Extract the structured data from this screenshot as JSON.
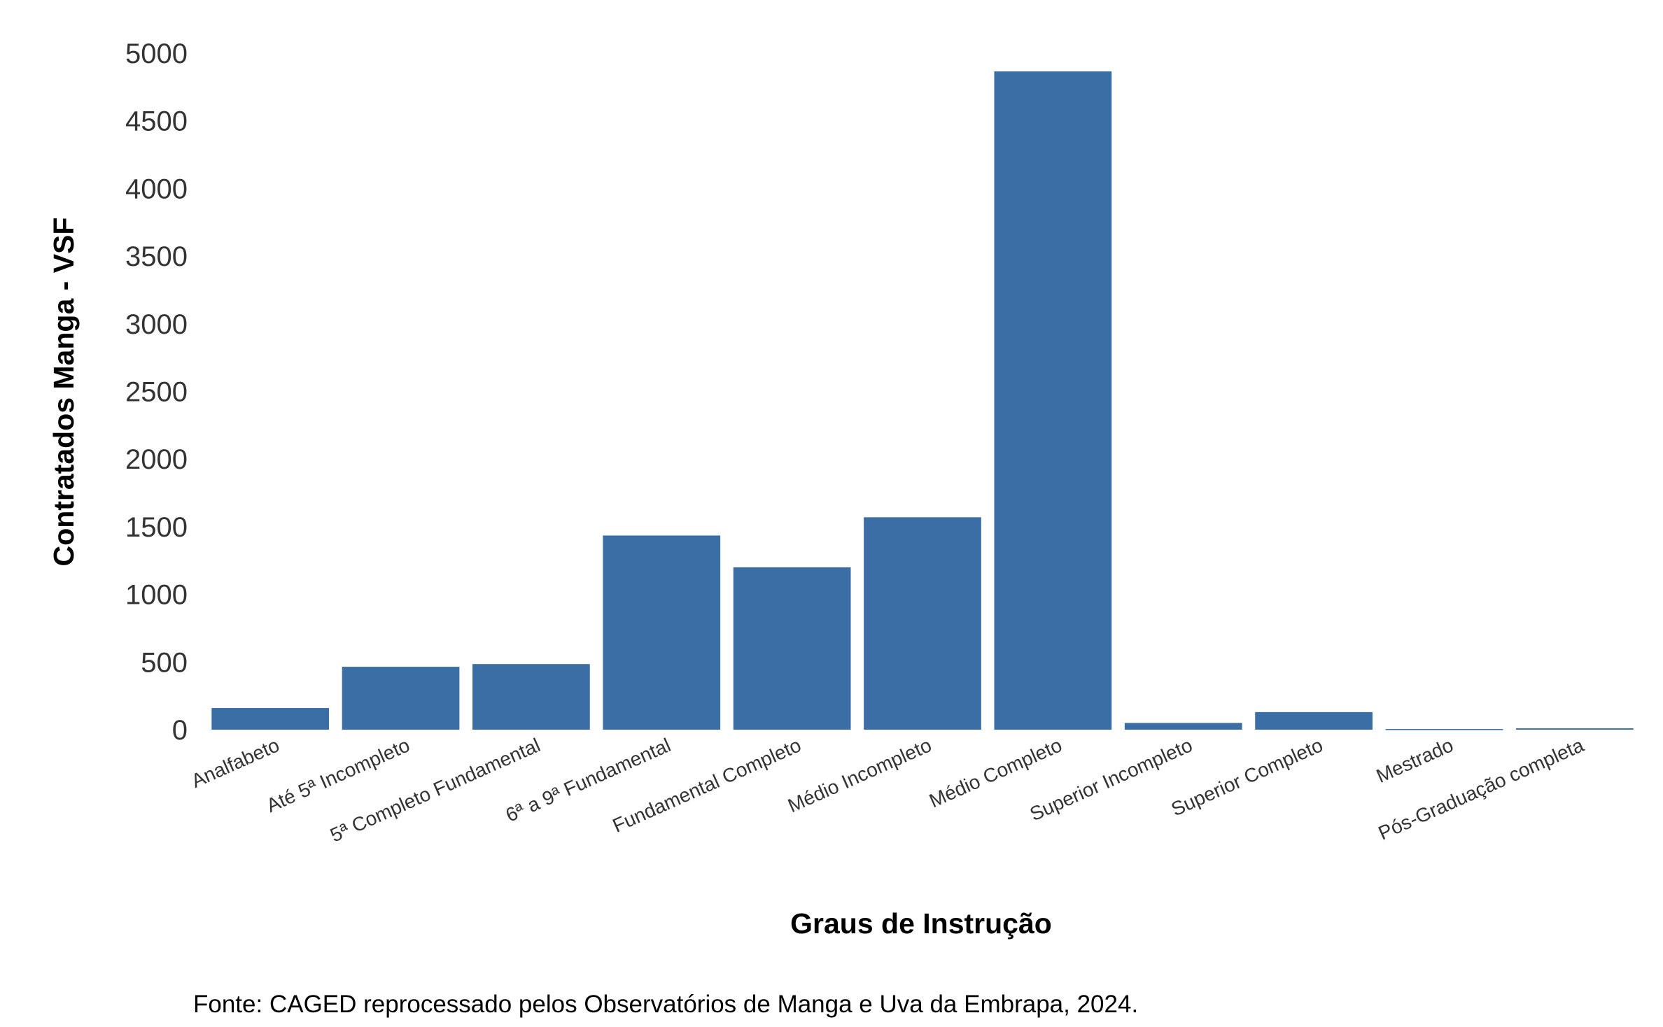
{
  "chart_data": {
    "type": "bar",
    "title": "",
    "xlabel": "Graus de Instrução",
    "ylabel": "Contratados Manga - VSF",
    "ylim": [
      0,
      5000
    ],
    "yticks": [
      0,
      500,
      1000,
      1500,
      2000,
      2500,
      3000,
      3500,
      4000,
      4500,
      5000
    ],
    "grid": false,
    "legend": "none",
    "bar_color": "#3a6ea5",
    "categories": [
      "Analfabeto",
      "Até 5ª Incompleto",
      "5ª Completo Fundamental",
      "6ª a 9ª Fundamental",
      "Fundamental Completo",
      "Médio Incompleto",
      "Médio Completo",
      "Superior Incompleto",
      "Superior Completo",
      "Mestrado",
      "Pós-Graduação completa"
    ],
    "values": [
      160,
      465,
      485,
      1435,
      1200,
      1570,
      4865,
      50,
      130,
      5,
      10
    ]
  },
  "source": "Fonte: CAGED reprocessado pelos Observatórios de Manga e Uva da Embrapa, 2024."
}
